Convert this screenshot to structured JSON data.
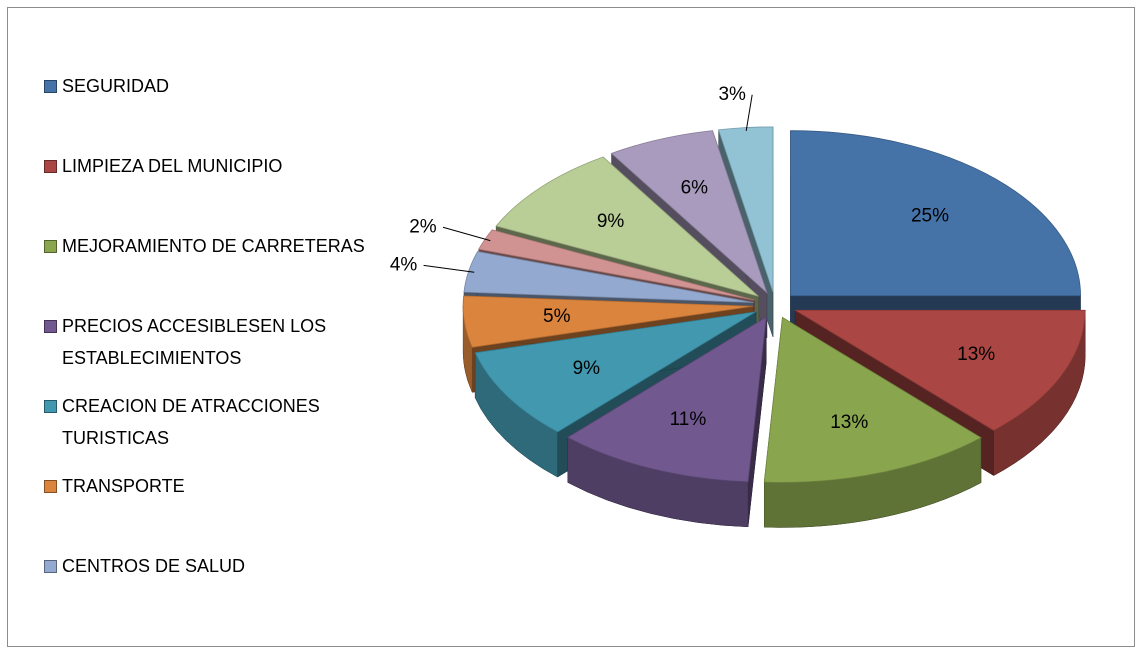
{
  "chart_data": {
    "type": "pie",
    "categories": [
      "SEGURIDAD",
      "LIMPIEZA DEL MUNICIPIO",
      "MEJORAMIENTO DE CARRETERAS",
      "PRECIOS ACCESIBLESEN LOS ESTABLECIMIENTOS",
      "CREACION DE ATRACCIONES TURISTICAS",
      "TRANSPORTE",
      "CENTROS DE SALUD",
      null,
      null,
      null,
      null
    ],
    "values": [
      25,
      13,
      13,
      11,
      9,
      5,
      4,
      2,
      9,
      6,
      3
    ],
    "value_labels": [
      "25%",
      "13%",
      "13%",
      "11%",
      "9%",
      "5%",
      "4%",
      "2%",
      "9%",
      "6%",
      "3%"
    ],
    "colors": [
      "#4572a7",
      "#aa4643",
      "#89a54e",
      "#71588f",
      "#4198af",
      "#db843d",
      "#93a9cf",
      "#d19392",
      "#b9cd96",
      "#a99bbd",
      "#91c3d5"
    ],
    "legend": "left"
  }
}
